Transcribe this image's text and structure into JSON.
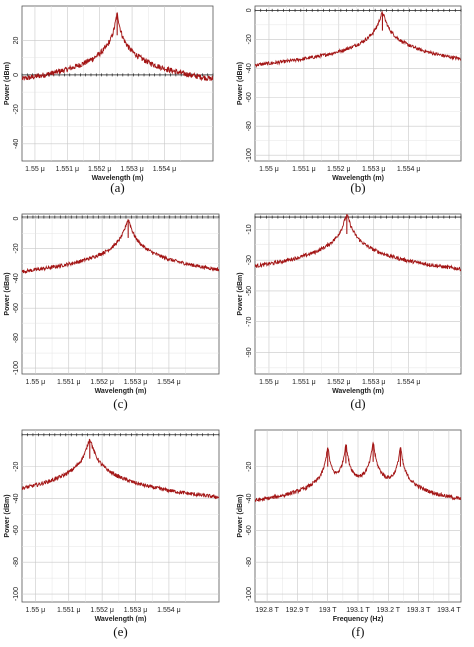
{
  "colors": {
    "trace": "#a31515",
    "grid": "#c8c8c8",
    "frame": "#555555",
    "marker_line": "#222222"
  },
  "chart_data": [
    {
      "type": "line",
      "panel_label": "(a)",
      "xlabel": "Wavelength (m)",
      "ylabel": "Power (dBm)",
      "xticks": [
        "1.55 μ",
        "1.551 μ",
        "1.552 μ",
        "1.553 μ",
        "1.554 μ"
      ],
      "xtick_values": [
        1.55,
        1.551,
        1.552,
        1.553,
        1.554
      ],
      "yticks": [
        "20",
        "0",
        "-20",
        "-40"
      ],
      "ytick_values": [
        20,
        0,
        -20,
        -40
      ],
      "xlim": [
        1.5496,
        1.5555
      ],
      "ylim": [
        -50,
        40
      ],
      "series": [
        {
          "peaks": [
            {
              "x": 1.55254,
              "y": 35
            }
          ],
          "floor": -43,
          "hw": 4e-05,
          "noise": 1.6,
          "marker_level": 0
        }
      ],
      "grid": true
    },
    {
      "type": "line",
      "panel_label": "(b)",
      "xlabel": "Wavelength (m)",
      "ylabel": "Power (dBm)",
      "xticks": [
        "1.55 μ",
        "1.551 μ",
        "1.552 μ",
        "1.553 μ",
        "1.554 μ"
      ],
      "xtick_values": [
        1.55,
        1.551,
        1.552,
        1.553,
        1.554
      ],
      "yticks": [
        "0",
        "-20",
        "-40",
        "-60",
        "-80",
        "-100"
      ],
      "ytick_values": [
        0,
        -20,
        -40,
        -60,
        -80,
        -100
      ],
      "xlim": [
        1.5496,
        1.5555
      ],
      "ylim": [
        -104,
        3
      ],
      "series": [
        {
          "peaks": [
            {
              "x": 1.55325,
              "y": -2
            }
          ],
          "floor": -98,
          "hw": 6e-05,
          "noise": 1.2,
          "marker_level": 0
        }
      ],
      "grid": true
    },
    {
      "type": "line",
      "panel_label": "(c)",
      "xlabel": "Wavelength (m)",
      "ylabel": "Power (dBm)",
      "xticks": [
        "1.55 μ",
        "1.551 μ",
        "1.552 μ",
        "1.553 μ",
        "1.554 μ"
      ],
      "xtick_values": [
        1.55,
        1.551,
        1.552,
        1.553,
        1.554
      ],
      "yticks": [
        "0",
        "-20",
        "-40",
        "-60",
        "-80",
        "-100"
      ],
      "ytick_values": [
        0,
        -20,
        -40,
        -60,
        -80,
        -100
      ],
      "xlim": [
        1.5496,
        1.5555
      ],
      "ylim": [
        -104,
        3
      ],
      "series": [
        {
          "peaks": [
            {
              "x": 1.55278,
              "y": -1
            }
          ],
          "floor": -98,
          "hw": 6e-05,
          "noise": 1.2,
          "marker_level": 1
        }
      ],
      "grid": true
    },
    {
      "type": "line",
      "panel_label": "(d)",
      "xlabel": "Wavelength (m)",
      "ylabel": "Power (dBm)",
      "xticks": [
        "1.55 μ",
        "1.551 μ",
        "1.552 μ",
        "1.553 μ",
        "1.554 μ"
      ],
      "xtick_values": [
        1.55,
        1.551,
        1.552,
        1.553,
        1.554
      ],
      "yticks": [
        "-10",
        "-30",
        "-50",
        "-70",
        "-90"
      ],
      "ytick_values": [
        -10,
        -30,
        -50,
        -70,
        -90
      ],
      "xlim": [
        1.5496,
        1.5555
      ],
      "ylim": [
        -104,
        0
      ],
      "series": [
        {
          "peaks": [
            {
              "x": 1.55223,
              "y": -1
            }
          ],
          "floor": -98,
          "hw": 6e-05,
          "noise": 1.2,
          "marker_level": -2
        }
      ],
      "grid": true
    },
    {
      "type": "line",
      "panel_label": "(e)",
      "xlabel": "Wavelength (m)",
      "ylabel": "Power (dBm)",
      "xticks": [
        "1.55 μ",
        "1.551 μ",
        "1.552 μ",
        "1.553 μ",
        "1.554 μ"
      ],
      "xtick_values": [
        1.55,
        1.551,
        1.552,
        1.553,
        1.554
      ],
      "yticks": [
        "-20",
        "-40",
        "-60",
        "-80",
        "-100"
      ],
      "ytick_values": [
        -20,
        -40,
        -60,
        -80,
        -100
      ],
      "xlim": [
        1.5496,
        1.5555
      ],
      "ylim": [
        -105,
        3
      ],
      "series": [
        {
          "peaks": [
            {
              "x": 1.55163,
              "y": -3
            }
          ],
          "floor": -98,
          "hw": 6e-05,
          "noise": 1.2,
          "marker_level": 0
        }
      ],
      "grid": true
    },
    {
      "type": "line",
      "panel_label": "(f)",
      "xlabel": "Frequency (Hz)",
      "ylabel": "Power (dBm)",
      "xticks": [
        "192.8 T",
        "192.9 T",
        "193 T",
        "193.1 T",
        "193.2 T",
        "193.3 T",
        "193.4 T"
      ],
      "xtick_values": [
        192.8,
        192.9,
        193.0,
        193.1,
        193.2,
        193.3,
        193.4
      ],
      "yticks": [
        "-20",
        "-40",
        "-60",
        "-80",
        "-100"
      ],
      "ytick_values": [
        -20,
        -40,
        -60,
        -80,
        -100
      ],
      "xlim": [
        192.76,
        193.44
      ],
      "ylim": [
        -105,
        3
      ],
      "series": [
        {
          "peaks": [
            {
              "x": 193.0,
              "y": -8
            },
            {
              "x": 193.06,
              "y": -6
            },
            {
              "x": 193.15,
              "y": -5
            },
            {
              "x": 193.24,
              "y": -8
            }
          ],
          "floor": -86,
          "hw": 0.003,
          "noise": 1.2,
          "marker_level": null,
          "shoulders": [
            {
              "from": 192.76,
              "to": 192.87,
              "level": -90
            },
            {
              "from": 193.38,
              "to": 193.44,
              "level": -90
            }
          ],
          "gaps": [
            {
              "from": 192.87,
              "to": 192.915,
              "level": -100
            },
            {
              "from": 193.315,
              "to": 193.38,
              "level": -100
            }
          ]
        }
      ],
      "grid": true
    }
  ]
}
